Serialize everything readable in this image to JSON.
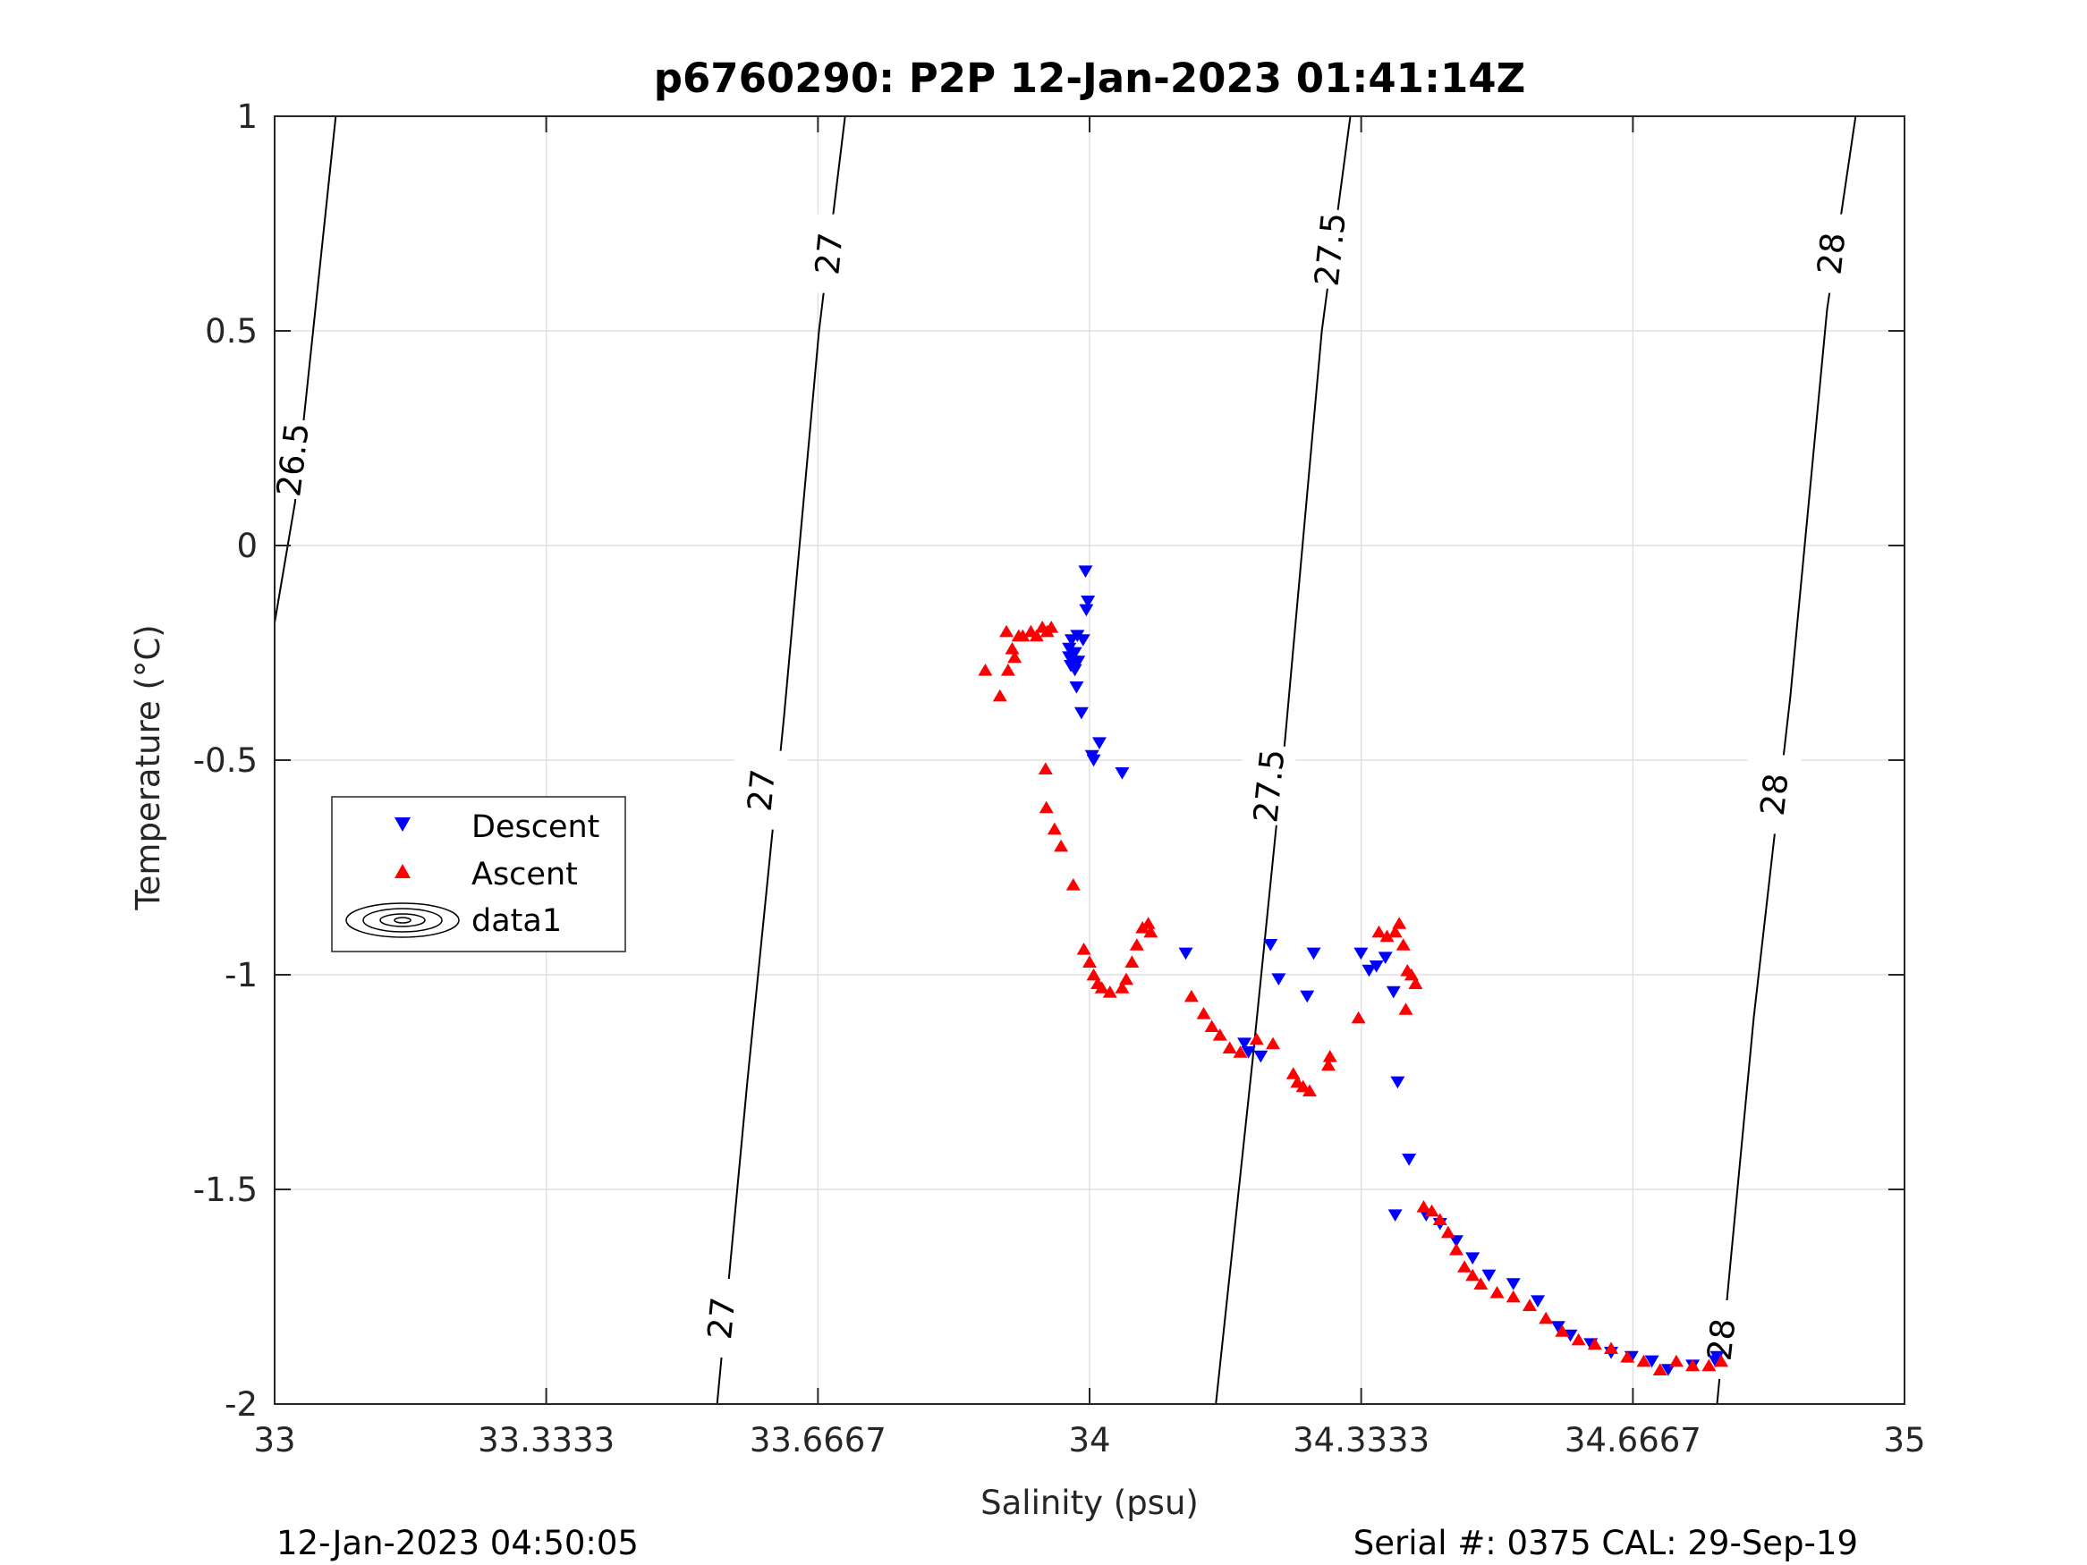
{
  "chart_data": {
    "type": "scatter",
    "title": "p6760290: P2P 12-Jan-2023 01:41:14Z",
    "xlabel": "Salinity (psu)",
    "ylabel": "Temperature (°C)",
    "xlim": [
      33,
      35
    ],
    "ylim": [
      -2,
      1
    ],
    "x_ticks": [
      "33",
      "33.3333",
      "33.6667",
      "34",
      "34.3333",
      "34.6667",
      "35"
    ],
    "y_ticks": [
      "1",
      "0.5",
      "0",
      "-0.5",
      "-1",
      "-1.5",
      "-2"
    ],
    "grid": true,
    "legend_position": "left-middle",
    "legend": [
      "Descent",
      "Ascent",
      "data1"
    ],
    "colors": {
      "descent": "#0000ff",
      "ascent": "#ff0000",
      "contour": "#000000",
      "grid": "#e0e0e0"
    },
    "series": [
      {
        "name": "Descent",
        "marker": "triangle-down",
        "points": [
          [
            33.995,
            -0.06
          ],
          [
            33.998,
            -0.13
          ],
          [
            33.996,
            -0.15
          ],
          [
            33.985,
            -0.21
          ],
          [
            33.992,
            -0.22
          ],
          [
            33.978,
            -0.22
          ],
          [
            33.975,
            -0.24
          ],
          [
            33.982,
            -0.25
          ],
          [
            33.975,
            -0.26
          ],
          [
            33.98,
            -0.27
          ],
          [
            33.986,
            -0.27
          ],
          [
            33.977,
            -0.28
          ],
          [
            33.982,
            -0.29
          ],
          [
            33.984,
            -0.33
          ],
          [
            33.99,
            -0.39
          ],
          [
            34.012,
            -0.46
          ],
          [
            34.003,
            -0.49
          ],
          [
            34.005,
            -0.5
          ],
          [
            34.04,
            -0.53
          ],
          [
            34.118,
            -0.95
          ],
          [
            34.222,
            -0.93
          ],
          [
            34.232,
            -1.01
          ],
          [
            34.267,
            -1.05
          ],
          [
            34.275,
            -0.95
          ],
          [
            34.333,
            -0.95
          ],
          [
            34.352,
            -0.98
          ],
          [
            34.363,
            -0.96
          ],
          [
            34.343,
            -0.99
          ],
          [
            34.373,
            -1.04
          ],
          [
            34.378,
            -1.25
          ],
          [
            34.392,
            -1.43
          ],
          [
            34.375,
            -1.56
          ],
          [
            34.413,
            -1.56
          ],
          [
            34.43,
            -1.58
          ],
          [
            34.45,
            -1.62
          ],
          [
            34.47,
            -1.66
          ],
          [
            34.49,
            -1.7
          ],
          [
            34.52,
            -1.72
          ],
          [
            34.55,
            -1.76
          ],
          [
            34.575,
            -1.82
          ],
          [
            34.59,
            -1.84
          ],
          [
            34.615,
            -1.86
          ],
          [
            34.64,
            -1.88
          ],
          [
            34.665,
            -1.89
          ],
          [
            34.69,
            -1.9
          ],
          [
            34.71,
            -1.92
          ],
          [
            34.74,
            -1.91
          ],
          [
            34.768,
            -1.9
          ],
          [
            34.77,
            -1.89
          ],
          [
            34.21,
            -1.19
          ],
          [
            34.195,
            -1.18
          ],
          [
            34.19,
            -1.16
          ]
        ]
      },
      {
        "name": "Ascent",
        "marker": "triangle-up",
        "points": [
          [
            33.872,
            -0.29
          ],
          [
            33.89,
            -0.35
          ],
          [
            33.898,
            -0.2
          ],
          [
            33.9,
            -0.29
          ],
          [
            33.905,
            -0.24
          ],
          [
            33.908,
            -0.26
          ],
          [
            33.913,
            -0.21
          ],
          [
            33.918,
            -0.21
          ],
          [
            33.928,
            -0.2
          ],
          [
            33.935,
            -0.21
          ],
          [
            33.942,
            -0.19
          ],
          [
            33.948,
            -0.2
          ],
          [
            33.953,
            -0.19
          ],
          [
            33.946,
            -0.52
          ],
          [
            33.947,
            -0.61
          ],
          [
            33.957,
            -0.66
          ],
          [
            33.965,
            -0.7
          ],
          [
            33.98,
            -0.79
          ],
          [
            33.993,
            -0.94
          ],
          [
            34.0,
            -0.97
          ],
          [
            34.005,
            -1.0
          ],
          [
            34.01,
            -1.02
          ],
          [
            34.015,
            -1.03
          ],
          [
            34.025,
            -1.04
          ],
          [
            34.04,
            -1.03
          ],
          [
            34.045,
            -1.01
          ],
          [
            34.052,
            -0.97
          ],
          [
            34.058,
            -0.93
          ],
          [
            34.065,
            -0.89
          ],
          [
            34.072,
            -0.88
          ],
          [
            34.075,
            -0.9
          ],
          [
            34.125,
            -1.05
          ],
          [
            34.14,
            -1.09
          ],
          [
            34.15,
            -1.12
          ],
          [
            34.16,
            -1.14
          ],
          [
            34.172,
            -1.17
          ],
          [
            34.185,
            -1.18
          ],
          [
            34.205,
            -1.15
          ],
          [
            34.225,
            -1.16
          ],
          [
            34.25,
            -1.23
          ],
          [
            34.255,
            -1.25
          ],
          [
            34.262,
            -1.26
          ],
          [
            34.27,
            -1.27
          ],
          [
            34.293,
            -1.21
          ],
          [
            34.295,
            -1.19
          ],
          [
            34.33,
            -1.1
          ],
          [
            34.355,
            -0.9
          ],
          [
            34.365,
            -0.91
          ],
          [
            34.375,
            -0.9
          ],
          [
            34.38,
            -0.88
          ],
          [
            34.385,
            -0.93
          ],
          [
            34.39,
            -0.99
          ],
          [
            34.395,
            -1.0
          ],
          [
            34.4,
            -1.02
          ],
          [
            34.388,
            -1.08
          ],
          [
            34.41,
            -1.54
          ],
          [
            34.42,
            -1.55
          ],
          [
            34.43,
            -1.57
          ],
          [
            34.44,
            -1.6
          ],
          [
            34.45,
            -1.64
          ],
          [
            34.46,
            -1.68
          ],
          [
            34.47,
            -1.7
          ],
          [
            34.48,
            -1.72
          ],
          [
            34.5,
            -1.74
          ],
          [
            34.52,
            -1.75
          ],
          [
            34.54,
            -1.77
          ],
          [
            34.56,
            -1.8
          ],
          [
            34.58,
            -1.83
          ],
          [
            34.6,
            -1.85
          ],
          [
            34.62,
            -1.86
          ],
          [
            34.64,
            -1.87
          ],
          [
            34.66,
            -1.89
          ],
          [
            34.68,
            -1.9
          ],
          [
            34.7,
            -1.92
          ],
          [
            34.72,
            -1.9
          ],
          [
            34.74,
            -1.91
          ],
          [
            34.76,
            -1.91
          ],
          [
            34.775,
            -1.9
          ]
        ]
      }
    ],
    "contours": [
      {
        "sigma": "26.5",
        "x": [
          33.0,
          33.025,
          33.075
        ],
        "y": [
          -0.18,
          0.1,
          1.0
        ],
        "labels": [
          {
            "x": 33.022,
            "y": 0.2
          }
        ]
      },
      {
        "sigma": "27",
        "x": [
          33.543,
          33.58,
          33.625,
          33.668,
          33.7
        ],
        "y": [
          -2.0,
          -1.25,
          -0.4,
          0.5,
          1.0
        ],
        "labels": [
          {
            "x": 33.548,
            "y": -1.8
          },
          {
            "x": 33.597,
            "y": -0.57
          },
          {
            "x": 33.68,
            "y": 0.68
          }
        ]
      },
      {
        "sigma": "27.5",
        "x": [
          34.155,
          34.2,
          34.24,
          34.285,
          34.32
        ],
        "y": [
          -2.0,
          -1.2,
          -0.45,
          0.5,
          1.0
        ],
        "labels": [
          {
            "x": 34.22,
            "y": -0.56
          },
          {
            "x": 34.295,
            "y": 0.69
          }
        ]
      },
      {
        "sigma": "28",
        "x": [
          34.77,
          34.815,
          34.86,
          34.905,
          34.94
        ],
        "y": [
          -2.0,
          -1.1,
          -0.35,
          0.55,
          1.0
        ],
        "labels": [
          {
            "x": 34.84,
            "y": -0.58
          },
          {
            "x": 34.91,
            "y": 0.68
          },
          {
            "x": 34.775,
            "y": -1.85
          }
        ]
      }
    ]
  },
  "footer": {
    "left": "12-Jan-2023 04:50:05",
    "right": "Serial #: 0375  CAL: 29-Sep-19"
  }
}
